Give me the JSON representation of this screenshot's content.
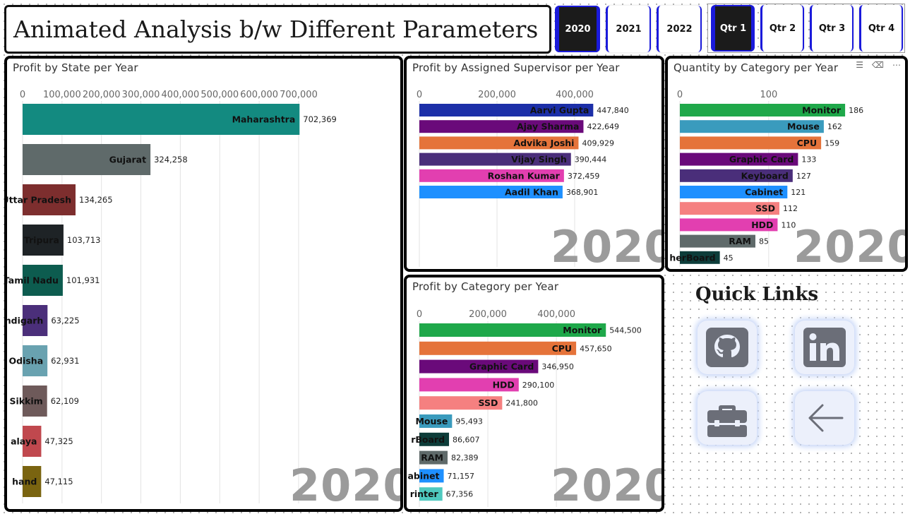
{
  "title": "Animated Analysis b/w Different Parameters",
  "years": [
    {
      "label": "2020",
      "selected": true
    },
    {
      "label": "2021",
      "selected": false
    },
    {
      "label": "2022",
      "selected": false
    }
  ],
  "quarters": [
    {
      "label": "Qtr 1",
      "selected": true
    },
    {
      "label": "Qtr 2",
      "selected": false
    },
    {
      "label": "Qtr 3",
      "selected": false
    },
    {
      "label": "Qtr 4",
      "selected": false
    }
  ],
  "quick_links": {
    "title": "Quick Links",
    "items": [
      "github-icon",
      "linkedin-icon",
      "briefcase-icon",
      "back-arrow-icon"
    ]
  },
  "colors": {
    "slicer_accent": "#1a1adb",
    "watermark": "#9b9b9b",
    "ql_icon": "#6b6e78"
  },
  "chart_data": [
    {
      "type": "bar",
      "orientation": "horizontal",
      "title": "Profit by State per Year",
      "watermark": "2020",
      "categories": [
        "Maharashtra",
        "Gujarat",
        "Uttar Pradesh",
        "Tripura",
        "Tamil Nadu",
        "ndigarh",
        "Odisha",
        "Sikkim",
        "alaya",
        "hand"
      ],
      "values": [
        702369,
        324258,
        134265,
        103713,
        101931,
        63225,
        62931,
        62109,
        47325,
        47115
      ],
      "value_labels": [
        "702,369",
        "324,258",
        "134,265",
        "103,713",
        "101,931",
        "63,225",
        "62,931",
        "62,109",
        "47,325",
        "47,115"
      ],
      "colors": [
        "#138a80",
        "#5f6a6a",
        "#7d2e2e",
        "#1e2326",
        "#0d5c4f",
        "#4b2f7a",
        "#69a2b0",
        "#6e5a5a",
        "#c0484e",
        "#7a6410"
      ],
      "ticks": [
        "0",
        "100,000",
        "200,000",
        "300,000",
        "400,000",
        "500,000",
        "600,000",
        "700,000"
      ],
      "tick_values": [
        0,
        100000,
        200000,
        300000,
        400000,
        500000,
        600000,
        700000
      ],
      "xlim": [
        0,
        820000
      ]
    },
    {
      "type": "bar",
      "orientation": "horizontal",
      "title": "Profit by Assigned Supervisor per Year",
      "watermark": "2020",
      "categories": [
        "Aarvi Gupta",
        "Ajay Sharma",
        "Advika Joshi",
        "Vijay Singh",
        "Roshan Kumar",
        "Aadil Khan"
      ],
      "values": [
        447840,
        422649,
        409929,
        390444,
        372459,
        368901
      ],
      "value_labels": [
        "447,840",
        "422,649",
        "409,929",
        "390,444",
        "372,459",
        "368,901"
      ],
      "colors": [
        "#1c2fa8",
        "#6a0a7a",
        "#e5733a",
        "#4a2e7a",
        "#e23fb0",
        "#1e90ff"
      ],
      "ticks": [
        "0",
        "200,000",
        "400,000"
      ],
      "tick_values": [
        0,
        200000,
        400000
      ],
      "xlim": [
        0,
        560000
      ]
    },
    {
      "type": "bar",
      "orientation": "horizontal",
      "title": "Quantity by Category per Year",
      "watermark": "2020",
      "categories": [
        "Monitor",
        "Mouse",
        "CPU",
        "Graphic Card",
        "Keyboard",
        "Cabinet",
        "SSD",
        "HDD",
        "RAM",
        "herBoard"
      ],
      "values": [
        186,
        162,
        159,
        133,
        127,
        121,
        112,
        110,
        85,
        45
      ],
      "value_labels": [
        "186",
        "162",
        "159",
        "133",
        "127",
        "121",
        "112",
        "110",
        "85",
        "45"
      ],
      "colors": [
        "#1fa84a",
        "#3a9bbd",
        "#e5733a",
        "#6a0a7a",
        "#4a2e7a",
        "#1e90ff",
        "#f58080",
        "#e23fb0",
        "#5f6a6a",
        "#0d3d3a"
      ],
      "ticks": [
        "0",
        "100"
      ],
      "tick_values": [
        0,
        100
      ],
      "xlim": [
        0,
        232
      ]
    },
    {
      "type": "bar",
      "orientation": "horizontal",
      "title": "Profit by Category per Year",
      "watermark": "2020",
      "categories": [
        "Monitor",
        "CPU",
        "Graphic Card",
        "HDD",
        "SSD",
        "Mouse",
        "rBoard",
        "RAM",
        "abinet",
        "rinter"
      ],
      "values": [
        544500,
        457650,
        346950,
        290100,
        241800,
        95493,
        86607,
        82389,
        71157,
        67356
      ],
      "value_labels": [
        "544,500",
        "457,650",
        "346,950",
        "290,100",
        "241,800",
        "95,493",
        "86,607",
        "82,389",
        "71,157",
        "67,356"
      ],
      "colors": [
        "#1fa84a",
        "#e5733a",
        "#6a0a7a",
        "#e23fb0",
        "#f58080",
        "#3a9bbd",
        "#0d3d3a",
        "#5f6a6a",
        "#1e90ff",
        "#4fc9bf"
      ],
      "ticks": [
        "0",
        "200,000",
        "400,000"
      ],
      "tick_values": [
        0,
        200000,
        400000
      ],
      "xlim": [
        0,
        680000
      ]
    }
  ]
}
